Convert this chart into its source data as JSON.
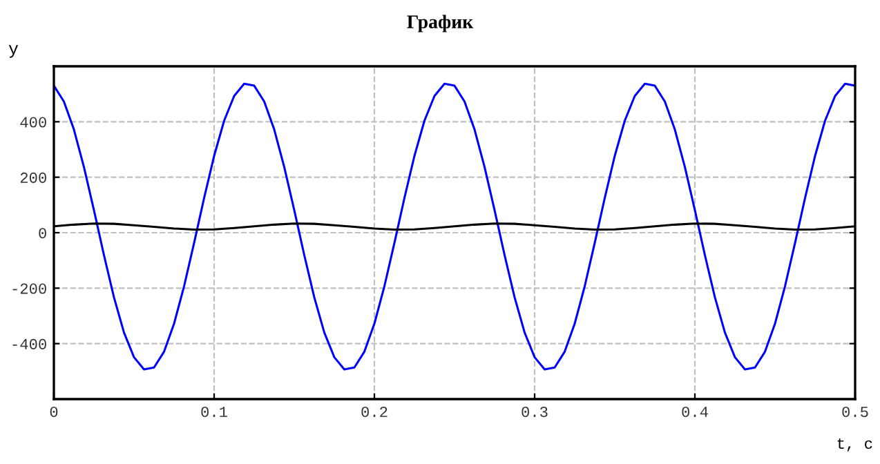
{
  "chart_data": {
    "type": "line",
    "title": "График",
    "xlabel": "t, c",
    "ylabel": "y",
    "xlim": [
      0,
      0.5
    ],
    "ylim": [
      -600,
      600
    ],
    "xticks": [
      0,
      0.1,
      0.2,
      0.3,
      0.4,
      0.5
    ],
    "yticks": [
      -400,
      -200,
      0,
      200,
      400
    ],
    "grid": true,
    "legend": false,
    "marker": "none",
    "line_style": "solid",
    "series": [
      {
        "color": "#0000ff",
        "x": [
          0,
          0.00625,
          0.0125,
          0.01875,
          0.025,
          0.03125,
          0.0375,
          0.04375,
          0.05,
          0.05625,
          0.0625,
          0.06875,
          0.075,
          0.08125,
          0.0875,
          0.09375,
          0.1,
          0.10625,
          0.1125,
          0.11875,
          0.125,
          0.13125,
          0.1375,
          0.14375,
          0.15,
          0.15625,
          0.1625,
          0.16875,
          0.175,
          0.18125,
          0.1875,
          0.19375,
          0.2,
          0.20625,
          0.2125,
          0.21875,
          0.225,
          0.23125,
          0.2375,
          0.24375,
          0.25,
          0.25625,
          0.2625,
          0.26875,
          0.275,
          0.28125,
          0.2875,
          0.29375,
          0.3,
          0.30625,
          0.3125,
          0.31875,
          0.325,
          0.33125,
          0.3375,
          0.34375,
          0.35,
          0.35625,
          0.3625,
          0.36875,
          0.375,
          0.38125,
          0.3875,
          0.39375,
          0.4,
          0.40625,
          0.4125,
          0.41875,
          0.425,
          0.43125,
          0.4375,
          0.44375,
          0.45,
          0.45625,
          0.4625,
          0.46875,
          0.475,
          0.48125,
          0.4875,
          0.49375,
          0.5
        ],
        "values": [
          530,
          473,
          372,
          237,
          81,
          -81,
          -233,
          -360,
          -449,
          -493,
          -486,
          -429,
          -328,
          -193,
          -37,
          125,
          277,
          404,
          493,
          537,
          530,
          473,
          372,
          237,
          81,
          -81,
          -233,
          -360,
          -449,
          -493,
          -486,
          -429,
          -328,
          -193,
          -37,
          125,
          277,
          404,
          493,
          537,
          530,
          473,
          372,
          237,
          81,
          -81,
          -233,
          -360,
          -449,
          -493,
          -486,
          -429,
          -328,
          -193,
          -37,
          125,
          277,
          404,
          493,
          537,
          530,
          473,
          372,
          237,
          81,
          -81,
          -233,
          -360,
          -449,
          -493,
          -486,
          -429,
          -328,
          -193,
          -37,
          125,
          277,
          404,
          493,
          537,
          530
        ]
      },
      {
        "color": "#000000",
        "x": [
          0,
          0.0125,
          0.025,
          0.0375,
          0.05,
          0.0625,
          0.075,
          0.0875,
          0.1,
          0.1125,
          0.125,
          0.1375,
          0.15,
          0.1625,
          0.175,
          0.1875,
          0.2,
          0.2125,
          0.225,
          0.2375,
          0.25,
          0.2625,
          0.275,
          0.2875,
          0.3,
          0.3125,
          0.325,
          0.3375,
          0.35,
          0.3625,
          0.375,
          0.3875,
          0.4,
          0.4125,
          0.425,
          0.4375,
          0.45,
          0.4625,
          0.475,
          0.4875,
          0.5
        ],
        "values": [
          23,
          29,
          33,
          32,
          27,
          21,
          15,
          11,
          12,
          17,
          23,
          29,
          33,
          32,
          27,
          21,
          15,
          11,
          12,
          17,
          23,
          29,
          33,
          32,
          27,
          21,
          15,
          11,
          12,
          17,
          23,
          29,
          33,
          32,
          27,
          21,
          15,
          11,
          12,
          17,
          23
        ]
      }
    ]
  }
}
